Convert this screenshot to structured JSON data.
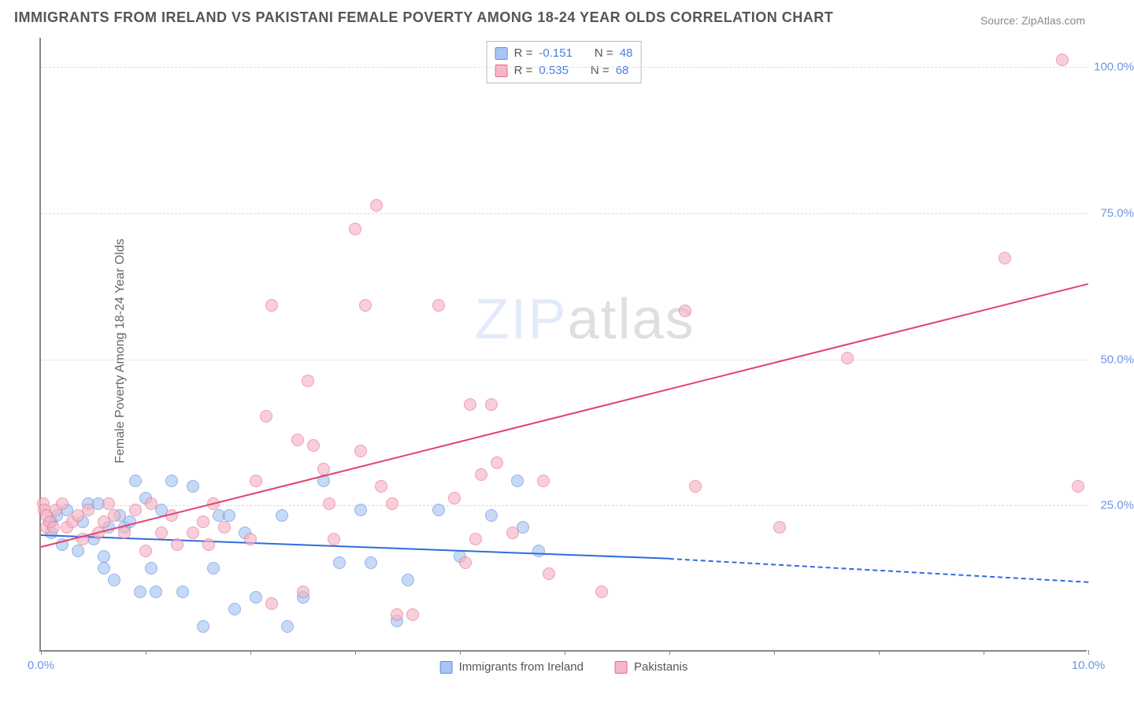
{
  "chart": {
    "type": "scatter",
    "title": "IMMIGRANTS FROM IRELAND VS PAKISTANI FEMALE POVERTY AMONG 18-24 YEAR OLDS CORRELATION CHART",
    "source": "Source: ZipAtlas.com",
    "ylabel": "Female Poverty Among 18-24 Year Olds",
    "xlim": [
      0,
      10
    ],
    "ylim": [
      0,
      105
    ],
    "x_ticks": [
      0,
      1,
      2,
      3,
      4,
      5,
      6,
      7,
      8,
      9,
      10
    ],
    "x_tick_labels": {
      "0": "0.0%",
      "10": "10.0%"
    },
    "y_gridlines": [
      25,
      50,
      75,
      100
    ],
    "y_tick_labels": {
      "25": "25.0%",
      "50": "50.0%",
      "75": "75.0%",
      "100": "100.0%"
    },
    "background_color": "#ffffff",
    "grid_color": "#dddddd",
    "axis_color": "#888888",
    "legend_top": {
      "rows": [
        {
          "swatch_fill": "#a9c6f2",
          "swatch_border": "#5a8de0",
          "r_label": "R =",
          "r_value": "-0.151",
          "n_label": "N =",
          "n_value": "48"
        },
        {
          "swatch_fill": "#f5b6c6",
          "swatch_border": "#e86a8c",
          "r_label": "R =",
          "r_value": "0.535",
          "n_label": "N =",
          "n_value": "68"
        }
      ]
    },
    "legend_bottom": {
      "items": [
        {
          "swatch_fill": "#a9c6f2",
          "swatch_border": "#5a8de0",
          "label": "Immigrants from Ireland"
        },
        {
          "swatch_fill": "#f5b6c6",
          "swatch_border": "#e86a8c",
          "label": "Pakistanis"
        }
      ]
    },
    "watermark": {
      "part1": "ZIP",
      "part2": "atlas"
    },
    "series": [
      {
        "name": "Immigrants from Ireland",
        "fill": "#a9c6f2",
        "border": "#5a8de0",
        "marker_size": 16,
        "trend_color": "#2f6cdf",
        "trend": {
          "x1": 0,
          "y1": 20,
          "x2": 6.0,
          "y2": 16,
          "dash_x2": 10,
          "dash_y2": 12
        },
        "points": [
          {
            "x": 0.1,
            "y": 22
          },
          {
            "x": 0.1,
            "y": 20
          },
          {
            "x": 0.15,
            "y": 23
          },
          {
            "x": 0.2,
            "y": 18
          },
          {
            "x": 0.25,
            "y": 24
          },
          {
            "x": 0.35,
            "y": 17
          },
          {
            "x": 0.4,
            "y": 22
          },
          {
            "x": 0.45,
            "y": 25
          },
          {
            "x": 0.5,
            "y": 19
          },
          {
            "x": 0.55,
            "y": 25
          },
          {
            "x": 0.6,
            "y": 16
          },
          {
            "x": 0.6,
            "y": 14
          },
          {
            "x": 0.65,
            "y": 21
          },
          {
            "x": 0.7,
            "y": 12
          },
          {
            "x": 0.75,
            "y": 23
          },
          {
            "x": 0.8,
            "y": 21
          },
          {
            "x": 0.85,
            "y": 22
          },
          {
            "x": 0.9,
            "y": 29
          },
          {
            "x": 0.95,
            "y": 10
          },
          {
            "x": 1.0,
            "y": 26
          },
          {
            "x": 1.05,
            "y": 14
          },
          {
            "x": 1.1,
            "y": 10
          },
          {
            "x": 1.15,
            "y": 24
          },
          {
            "x": 1.25,
            "y": 29
          },
          {
            "x": 1.35,
            "y": 10
          },
          {
            "x": 1.45,
            "y": 28
          },
          {
            "x": 1.55,
            "y": 4
          },
          {
            "x": 1.65,
            "y": 14
          },
          {
            "x": 1.7,
            "y": 23
          },
          {
            "x": 1.8,
            "y": 23
          },
          {
            "x": 1.85,
            "y": 7
          },
          {
            "x": 1.95,
            "y": 20
          },
          {
            "x": 2.05,
            "y": 9
          },
          {
            "x": 2.3,
            "y": 23
          },
          {
            "x": 2.35,
            "y": 4
          },
          {
            "x": 2.5,
            "y": 9
          },
          {
            "x": 2.7,
            "y": 29
          },
          {
            "x": 2.85,
            "y": 15
          },
          {
            "x": 3.05,
            "y": 24
          },
          {
            "x": 3.15,
            "y": 15
          },
          {
            "x": 3.4,
            "y": 5
          },
          {
            "x": 3.5,
            "y": 12
          },
          {
            "x": 3.8,
            "y": 24
          },
          {
            "x": 4.0,
            "y": 16
          },
          {
            "x": 4.3,
            "y": 23
          },
          {
            "x": 4.55,
            "y": 29
          },
          {
            "x": 4.6,
            "y": 21
          },
          {
            "x": 4.75,
            "y": 17
          }
        ]
      },
      {
        "name": "Pakistanis",
        "fill": "#f5b6c6",
        "border": "#e86a8c",
        "marker_size": 16,
        "trend_color": "#e04273",
        "trend": {
          "x1": 0,
          "y1": 18,
          "x2": 10,
          "y2": 63
        },
        "points": [
          {
            "x": 0.02,
            "y": 25
          },
          {
            "x": 0.03,
            "y": 24
          },
          {
            "x": 0.05,
            "y": 21
          },
          {
            "x": 0.05,
            "y": 23
          },
          {
            "x": 0.08,
            "y": 22
          },
          {
            "x": 0.12,
            "y": 21
          },
          {
            "x": 0.14,
            "y": 24
          },
          {
            "x": 0.2,
            "y": 25
          },
          {
            "x": 0.25,
            "y": 21
          },
          {
            "x": 0.3,
            "y": 22
          },
          {
            "x": 0.35,
            "y": 23
          },
          {
            "x": 0.4,
            "y": 19
          },
          {
            "x": 0.45,
            "y": 24
          },
          {
            "x": 0.55,
            "y": 20
          },
          {
            "x": 0.6,
            "y": 22
          },
          {
            "x": 0.65,
            "y": 25
          },
          {
            "x": 0.7,
            "y": 23
          },
          {
            "x": 0.8,
            "y": 20
          },
          {
            "x": 0.9,
            "y": 24
          },
          {
            "x": 1.0,
            "y": 17
          },
          {
            "x": 1.05,
            "y": 25
          },
          {
            "x": 1.15,
            "y": 20
          },
          {
            "x": 1.25,
            "y": 23
          },
          {
            "x": 1.3,
            "y": 18
          },
          {
            "x": 1.45,
            "y": 20
          },
          {
            "x": 1.55,
            "y": 22
          },
          {
            "x": 1.6,
            "y": 18
          },
          {
            "x": 1.65,
            "y": 25
          },
          {
            "x": 1.75,
            "y": 21
          },
          {
            "x": 2.0,
            "y": 19
          },
          {
            "x": 2.05,
            "y": 29
          },
          {
            "x": 2.15,
            "y": 40
          },
          {
            "x": 2.2,
            "y": 8
          },
          {
            "x": 2.2,
            "y": 59
          },
          {
            "x": 2.45,
            "y": 36
          },
          {
            "x": 2.5,
            "y": 10
          },
          {
            "x": 2.55,
            "y": 46
          },
          {
            "x": 2.6,
            "y": 35
          },
          {
            "x": 2.7,
            "y": 31
          },
          {
            "x": 2.75,
            "y": 25
          },
          {
            "x": 2.8,
            "y": 19
          },
          {
            "x": 3.0,
            "y": 72
          },
          {
            "x": 3.05,
            "y": 34
          },
          {
            "x": 3.1,
            "y": 59
          },
          {
            "x": 3.2,
            "y": 76
          },
          {
            "x": 3.25,
            "y": 28
          },
          {
            "x": 3.35,
            "y": 25
          },
          {
            "x": 3.4,
            "y": 6
          },
          {
            "x": 3.55,
            "y": 6
          },
          {
            "x": 3.8,
            "y": 59
          },
          {
            "x": 3.95,
            "y": 26
          },
          {
            "x": 4.05,
            "y": 15
          },
          {
            "x": 4.1,
            "y": 42
          },
          {
            "x": 4.15,
            "y": 19
          },
          {
            "x": 4.2,
            "y": 30
          },
          {
            "x": 4.3,
            "y": 42
          },
          {
            "x": 4.35,
            "y": 32
          },
          {
            "x": 4.5,
            "y": 20
          },
          {
            "x": 4.8,
            "y": 29
          },
          {
            "x": 4.85,
            "y": 13
          },
          {
            "x": 5.35,
            "y": 10
          },
          {
            "x": 6.15,
            "y": 58
          },
          {
            "x": 6.25,
            "y": 28
          },
          {
            "x": 7.05,
            "y": 21
          },
          {
            "x": 7.7,
            "y": 50
          },
          {
            "x": 9.2,
            "y": 67
          },
          {
            "x": 9.75,
            "y": 101
          },
          {
            "x": 9.9,
            "y": 28
          }
        ]
      }
    ]
  }
}
